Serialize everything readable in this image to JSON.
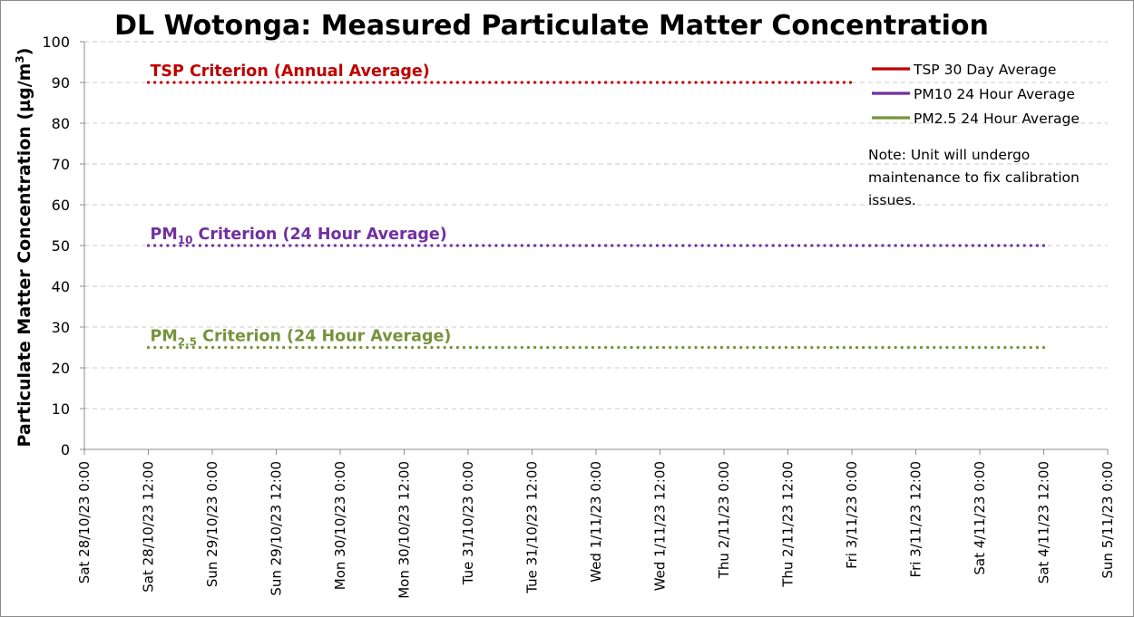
{
  "chart_data": {
    "type": "line",
    "title": "DL Wotonga: Measured Particulate Matter Concentration",
    "ylabel": "Particulate Matter Concentration (µg/m³)",
    "ylabel_parts": {
      "main": "Particulate Matter Concentration (µg/m",
      "sup": "3",
      "end": ")"
    },
    "ylim": [
      0,
      100
    ],
    "y_ticks": [
      0,
      10,
      20,
      30,
      40,
      50,
      60,
      70,
      80,
      90,
      100
    ],
    "grid": true,
    "x_categories": [
      "Sat 28/10/23 0:00",
      "Sat 28/10/23 12:00",
      "Sun 29/10/23 0:00",
      "Sun 29/10/23 12:00",
      "Mon 30/10/23 0:00",
      "Mon 30/10/23 12:00",
      "Tue 31/10/23 0:00",
      "Tue 31/10/23 12:00",
      "Wed 1/11/23 0:00",
      "Wed 1/11/23 12:00",
      "Thu 2/11/23 0:00",
      "Thu 2/11/23 12:00",
      "Fri 3/11/23 0:00",
      "Fri 3/11/23 12:00",
      "Sat 4/11/23 0:00",
      "Sat 4/11/23 12:00",
      "Sun 5/11/23 0:00"
    ],
    "series": [
      {
        "name": "TSP 30 Day Average",
        "color": "#c00000",
        "values": []
      },
      {
        "name": "PM10 24 Hour Average",
        "color": "#7030a0",
        "values": []
      },
      {
        "name": "PM2.5 24 Hour Average",
        "color": "#77933c",
        "values": []
      }
    ],
    "criteria": [
      {
        "value": 90,
        "color": "#c00000",
        "x_start": "Sat 28/10/23 12:00",
        "x_end": "Fri 3/11/23 0:00",
        "label_main": "TSP Criterion (Annual Average)",
        "label_sub": "",
        "label_rest": ""
      },
      {
        "value": 50,
        "color": "#7030a0",
        "x_start": "Sat 28/10/23 12:00",
        "x_end": "Sat 4/11/23 12:00",
        "label_main": "PM",
        "label_sub": "10",
        "label_rest": " Criterion (24 Hour Average)"
      },
      {
        "value": 25,
        "color": "#77933c",
        "x_start": "Sat 28/10/23 12:00",
        "x_end": "Sat 4/11/23 12:00",
        "label_main": "PM",
        "label_sub": "2.5",
        "label_rest": " Criterion (24 Hour Average)"
      }
    ],
    "note": [
      "Note: Unit will undergo",
      "maintenance to fix calibration",
      "issues."
    ],
    "legend_position": "top-right"
  }
}
